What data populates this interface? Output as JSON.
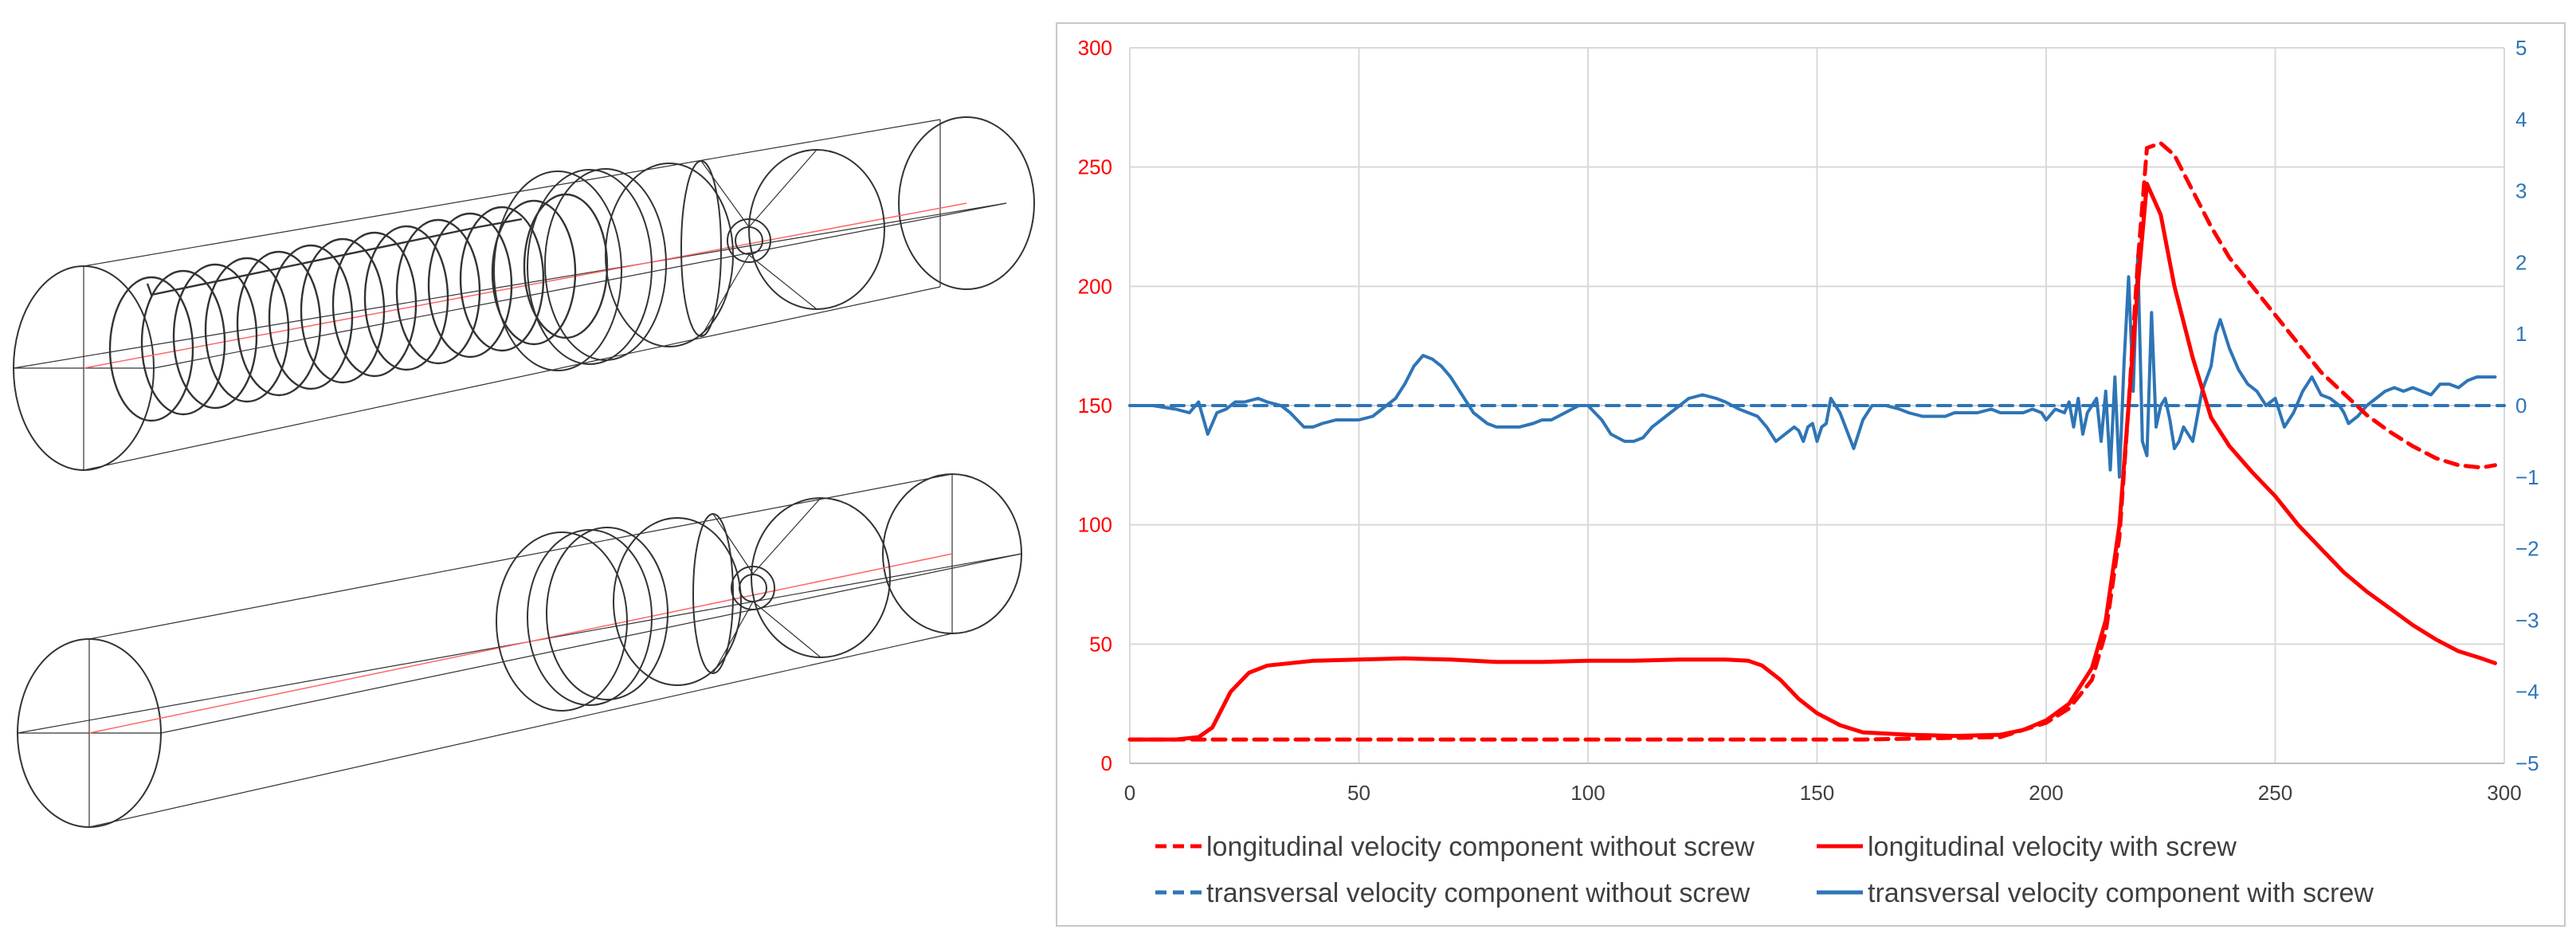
{
  "figure": {
    "left_panel": "geometry-wireframes",
    "wireframe_color": "#333333",
    "axis_line_color": "#ff6666"
  },
  "chart_data": {
    "type": "line",
    "title": "",
    "xlabel": "",
    "ylabel": "",
    "y2label": "",
    "xlim": [
      0,
      300
    ],
    "ylim": [
      0,
      300
    ],
    "y2lim": [
      -5,
      5
    ],
    "x_ticks": [
      "0",
      "50",
      "100",
      "150",
      "200",
      "250",
      "300"
    ],
    "y_ticks": [
      "0",
      "50",
      "100",
      "150",
      "200",
      "250",
      "300"
    ],
    "y2_ticks": [
      "−5",
      "−4",
      "−3",
      "−2",
      "−1",
      "0",
      "1",
      "2",
      "3",
      "4",
      "5"
    ],
    "grid": true,
    "legend_position": "bottom",
    "series": [
      {
        "name": "longitudinal velocity component without screw",
        "axis": "left",
        "color": "#ff0000",
        "dash": true,
        "x": [
          0,
          10,
          20,
          40,
          80,
          120,
          160,
          190,
          200,
          205,
          210,
          213,
          216,
          218,
          220,
          222,
          225,
          228,
          232,
          236,
          240,
          245,
          250,
          255,
          260,
          265,
          270,
          275,
          280,
          285,
          290,
          295,
          298
        ],
        "values": [
          10,
          10,
          10,
          10,
          10,
          10,
          10,
          11,
          17,
          23,
          35,
          55,
          95,
          150,
          210,
          258,
          260,
          255,
          240,
          225,
          212,
          200,
          188,
          176,
          164,
          155,
          146,
          139,
          133,
          128,
          125,
          124,
          125
        ]
      },
      {
        "name": "longitudinal velocity with screw",
        "axis": "left",
        "color": "#ff0000",
        "dash": false,
        "x": [
          0,
          10,
          15,
          18,
          22,
          26,
          30,
          35,
          40,
          50,
          60,
          70,
          80,
          90,
          100,
          110,
          120,
          130,
          135,
          138,
          142,
          146,
          150,
          155,
          160,
          170,
          180,
          190,
          195,
          200,
          205,
          210,
          213,
          216,
          218,
          220,
          222,
          225,
          228,
          232,
          236,
          240,
          245,
          250,
          255,
          260,
          265,
          270,
          275,
          280,
          285,
          290,
          295,
          298
        ],
        "values": [
          10,
          10,
          11,
          15,
          30,
          38,
          41,
          42,
          43,
          43.5,
          44,
          43.5,
          42.5,
          42.5,
          43,
          43,
          43.5,
          43.5,
          43,
          41,
          35,
          27,
          21,
          16,
          13,
          12,
          11.5,
          12,
          14,
          18,
          25,
          40,
          60,
          100,
          150,
          200,
          243,
          230,
          200,
          170,
          145,
          133,
          122,
          112,
          100,
          90,
          80,
          72,
          65,
          58,
          52,
          47,
          44,
          42
        ]
      },
      {
        "name": "transversal velocity component without screw",
        "axis": "right",
        "color": "#2e75b6",
        "dash": true,
        "x": [
          0,
          300
        ],
        "values": [
          0,
          0
        ]
      },
      {
        "name": "transversal velocity component with screw",
        "axis": "right",
        "color": "#2e75b6",
        "dash": false,
        "x": [
          0,
          5,
          10,
          13,
          15,
          17,
          19,
          21,
          23,
          25,
          28,
          30,
          33,
          35,
          38,
          40,
          42,
          45,
          48,
          50,
          53,
          55,
          58,
          60,
          62,
          64,
          66,
          68,
          70,
          72,
          75,
          78,
          80,
          82,
          85,
          88,
          90,
          92,
          95,
          98,
          100,
          103,
          105,
          108,
          110,
          112,
          114,
          116,
          118,
          120,
          122,
          125,
          128,
          130,
          133,
          135,
          137,
          139,
          141,
          143,
          145,
          146,
          147,
          148,
          149,
          150,
          151,
          152,
          153,
          155,
          158,
          160,
          162,
          165,
          168,
          170,
          173,
          175,
          178,
          180,
          183,
          185,
          188,
          190,
          192,
          195,
          197,
          199,
          200,
          202,
          204,
          205,
          206,
          207,
          208,
          209,
          210,
          211,
          212,
          213,
          214,
          215,
          216,
          217,
          218,
          219,
          220,
          221,
          222,
          223,
          224,
          225,
          226,
          227,
          228,
          229,
          230,
          232,
          234,
          236,
          237,
          238,
          240,
          242,
          244,
          246,
          248,
          250,
          252,
          254,
          256,
          258,
          260,
          262,
          264,
          265,
          266,
          268,
          270,
          272,
          274,
          276,
          278,
          280,
          282,
          284,
          286,
          288,
          290,
          292,
          294,
          296,
          298
        ],
        "values": [
          0,
          0,
          -0.05,
          -0.1,
          0.05,
          -0.4,
          -0.1,
          -0.05,
          0.05,
          0.05,
          0.1,
          0.05,
          0,
          -0.1,
          -0.3,
          -0.3,
          -0.25,
          -0.2,
          -0.2,
          -0.2,
          -0.15,
          -0.05,
          0.1,
          0.3,
          0.55,
          0.7,
          0.65,
          0.55,
          0.4,
          0.2,
          -0.1,
          -0.25,
          -0.3,
          -0.3,
          -0.3,
          -0.25,
          -0.2,
          -0.2,
          -0.1,
          0,
          0,
          -0.2,
          -0.4,
          -0.5,
          -0.5,
          -0.45,
          -0.3,
          -0.2,
          -0.1,
          0,
          0.1,
          0.15,
          0.1,
          0.05,
          -0.05,
          -0.1,
          -0.15,
          -0.3,
          -0.5,
          -0.4,
          -0.3,
          -0.35,
          -0.5,
          -0.3,
          -0.25,
          -0.5,
          -0.3,
          -0.25,
          0.1,
          -0.1,
          -0.6,
          -0.2,
          0,
          0,
          -0.05,
          -0.1,
          -0.15,
          -0.15,
          -0.15,
          -0.1,
          -0.1,
          -0.1,
          -0.05,
          -0.1,
          -0.1,
          -0.1,
          -0.05,
          -0.1,
          -0.2,
          -0.05,
          -0.1,
          0.05,
          -0.3,
          0.1,
          -0.4,
          -0.1,
          0,
          0.1,
          -0.5,
          0.2,
          -0.9,
          0.4,
          -1,
          0.6,
          1.8,
          0.2,
          2.1,
          -0.5,
          -0.7,
          1.3,
          -0.3,
          0,
          0.1,
          -0.2,
          -0.6,
          -0.5,
          -0.3,
          -0.5,
          0.2,
          0.55,
          1.0,
          1.2,
          0.8,
          0.5,
          0.3,
          0.2,
          0,
          0.1,
          -0.3,
          -0.1,
          0.2,
          0.4,
          0.15,
          0.1,
          0,
          -0.1,
          -0.25,
          -0.15,
          0,
          0.1,
          0.2,
          0.25,
          0.2,
          0.25,
          0.2,
          0.15,
          0.3,
          0.3,
          0.25,
          0.35,
          0.4,
          0.4,
          0.4
        ]
      }
    ],
    "legend": [
      {
        "label": "longitudinal velocity component without screw",
        "series": 0
      },
      {
        "label": "longitudinal velocity with screw",
        "series": 1
      },
      {
        "label": "transversal velocity component without screw",
        "series": 2
      },
      {
        "label": "transversal velocity component with screw",
        "series": 3
      }
    ]
  }
}
